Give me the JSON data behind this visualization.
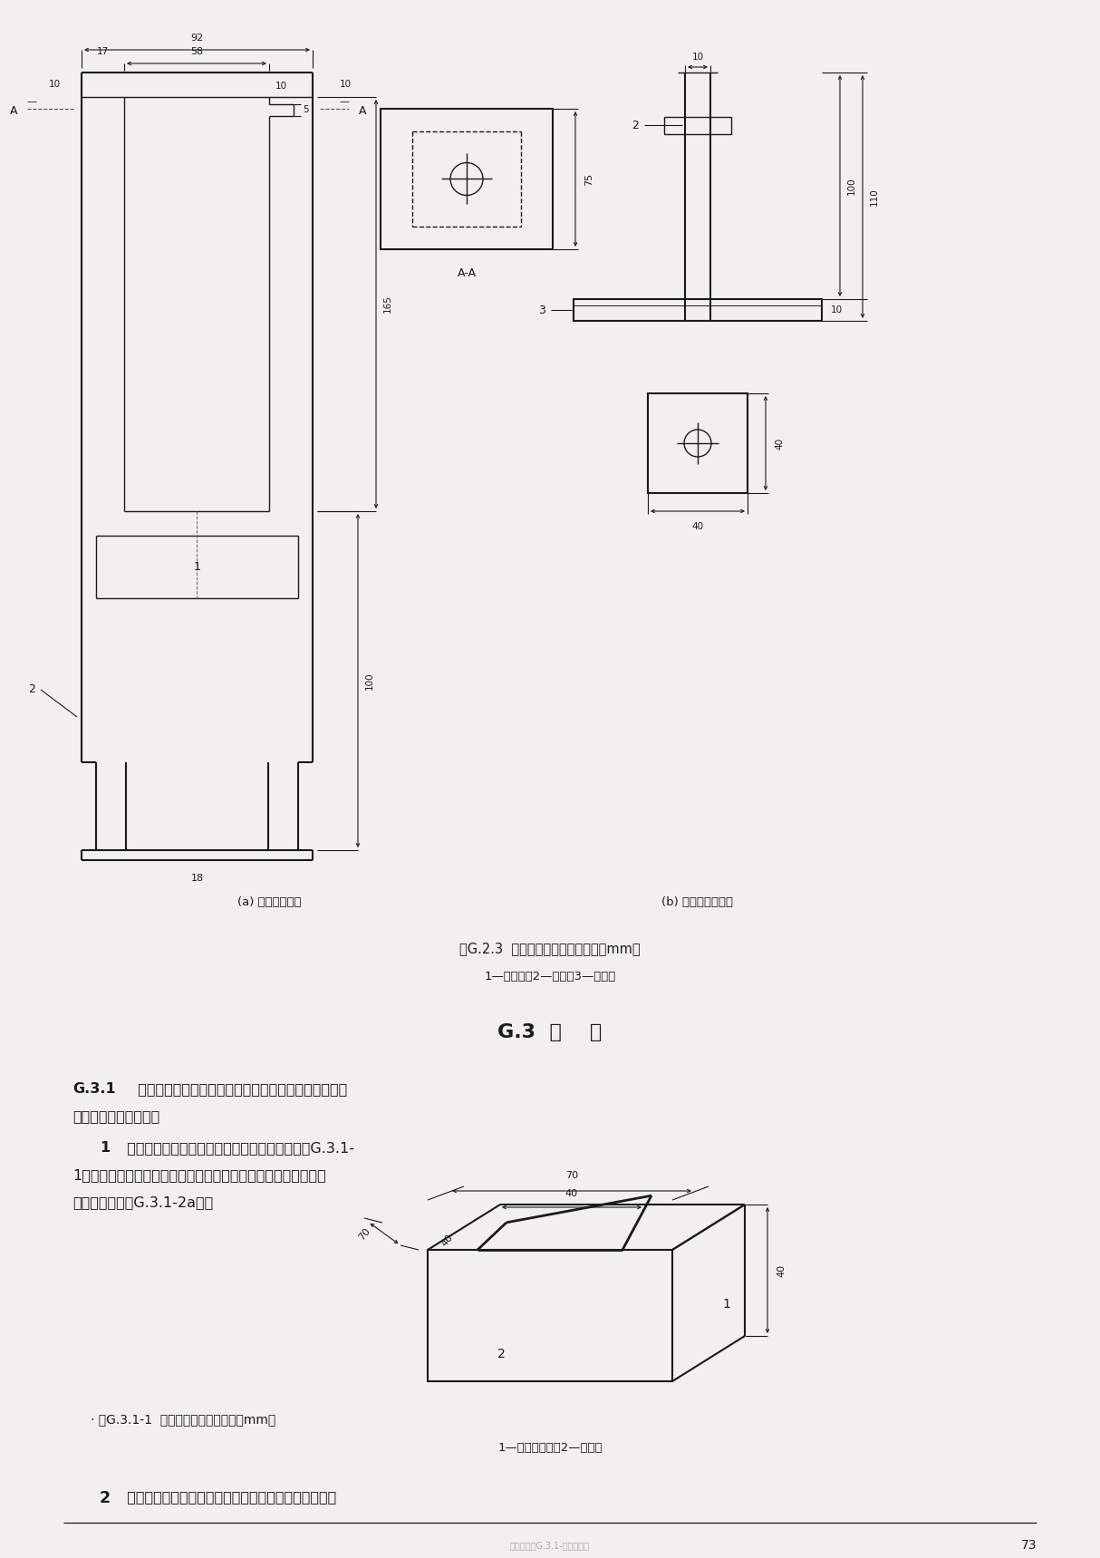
{
  "bg_color": "#f2f0ed",
  "text_color": "#1a1a1a",
  "page_width": 12.14,
  "page_height": 17.19,
  "fig_caption_1": "图G.2.3  试件夹具及锱标准块尺寸（mm）",
  "fig_caption_1_sub": "1—镑夹具；2—螺杆；3—标准块",
  "label_a": "(a) 带拉杆镑夹具",
  "label_b": "(b) 带螺杆镑标准块",
  "section_title": "G.3  试    件",
  "g31_bold": "G.3.1",
  "g31_text_1": "  试验室条件下测定正拉粘结强度应采用组合式试件，其",
  "g31_text_2": "构造应符合下列规定：",
  "item1_bold": "    1",
  "item1_text_1": "  以胶粘剂为粘结材料的试件应由混凝土试块（图G.3.1-",
  "item1_text_2": "1）、胶粘剂、加固材料（如纤维复合材或镑板等）及镑标准块相",
  "item1_text_3": "互粘合而成（图G.3.1-2a）；",
  "fig_caption_2": "图G.3.1-1  混凝土试块形式及尺寸（mm）",
  "fig_caption_2_sub": "1—混凝土试块；2—预切缝",
  "item2_bold": "    2",
  "item2_text": "  以结构用聚合物改性水泥砂浆为粘结材料的试件应由混",
  "page_num": "73",
  "bottom_text": "混凝土试块G.3.1-一次测定图"
}
